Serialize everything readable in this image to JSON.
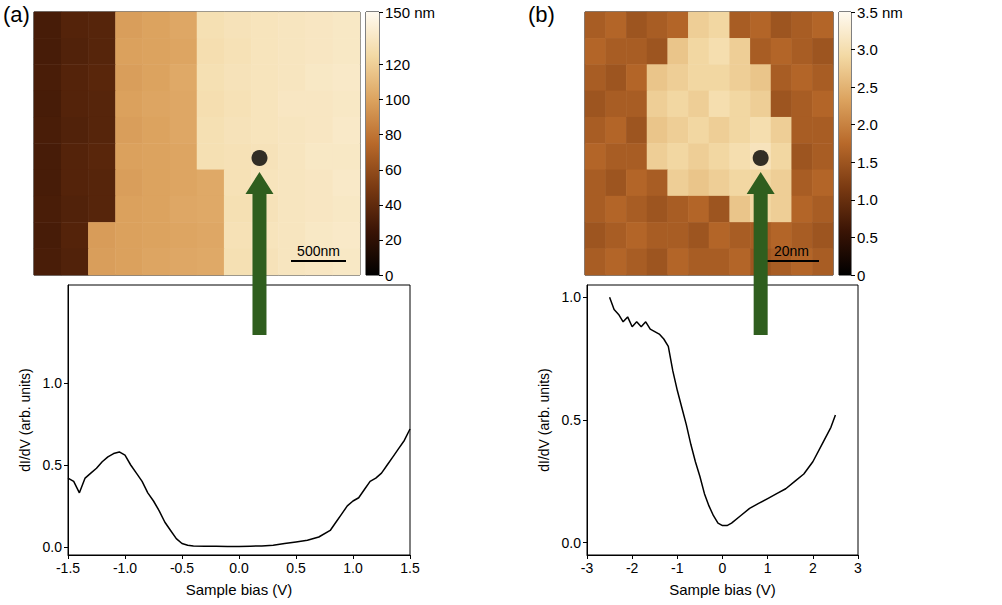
{
  "chart_data": [
    {
      "type": "heatmap",
      "panel_label": "(a)",
      "tick_labels": false,
      "marker": "circle",
      "scale_bar": "500nm",
      "marked_point": [
        8.3,
        5.55
      ],
      "cells": [
        [
          30,
          35,
          36,
          98,
          100,
          102,
          130,
          132,
          133,
          134,
          135,
          136
        ],
        [
          30,
          34,
          36,
          99,
          100,
          101,
          129,
          131,
          133,
          134,
          135,
          136
        ],
        [
          31,
          35,
          37,
          98,
          100,
          103,
          130,
          132,
          133,
          134,
          136,
          137
        ],
        [
          30,
          35,
          36,
          99,
          101,
          102,
          129,
          131,
          133,
          135,
          135,
          136
        ],
        [
          31,
          34,
          36,
          98,
          100,
          102,
          130,
          132,
          133,
          134,
          135,
          137
        ],
        [
          30,
          35,
          37,
          99,
          100,
          101,
          130,
          131,
          132,
          134,
          136,
          136
        ],
        [
          30,
          35,
          36,
          98,
          100,
          101,
          103,
          131,
          133,
          134,
          135,
          137
        ],
        [
          31,
          34,
          36,
          99,
          100,
          102,
          103,
          130,
          132,
          134,
          135,
          136
        ],
        [
          30,
          35,
          97,
          99,
          100,
          101,
          102,
          131,
          133,
          134,
          136,
          137
        ],
        [
          31,
          34,
          98,
          99,
          101,
          102,
          103,
          130,
          132,
          134,
          135,
          136
        ]
      ],
      "colorbar": {
        "range": [
          0,
          150
        ],
        "ticks": [
          0,
          20,
          40,
          60,
          80,
          100,
          120,
          {
            "value": 150,
            "label": "150 nm"
          }
        ],
        "colors": [
          "#000000",
          "#3a1405",
          "#7a3a12",
          "#b8692a",
          "#dca35f",
          "#f3d9a4",
          "#fffaf0"
        ]
      }
    },
    {
      "type": "line",
      "xlabel": "Sample bias (V)",
      "ylabel": "dI/dV (arb. units)",
      "xlim": [
        -1.5,
        1.5
      ],
      "ylim": [
        -0.05,
        1.6
      ],
      "xticks": [
        -1.5,
        {
          "value": -1,
          "label": "-1.0"
        },
        -0.5,
        {
          "value": 0,
          "label": "0.0"
        },
        0.5,
        {
          "value": 1,
          "label": "1.0"
        },
        1.5
      ],
      "yticks": [
        {
          "value": 0,
          "label": "0.0"
        },
        0.5,
        {
          "value": 1,
          "label": "1.0"
        }
      ],
      "grid": false,
      "color": "#000000",
      "x": [
        -1.5,
        -1.45,
        -1.4,
        -1.35,
        -1.3,
        -1.25,
        -1.2,
        -1.15,
        -1.1,
        -1.05,
        -1.0,
        -0.95,
        -0.9,
        -0.85,
        -0.8,
        -0.75,
        -0.7,
        -0.65,
        -0.6,
        -0.55,
        -0.5,
        -0.45,
        -0.4,
        -0.3,
        -0.2,
        -0.1,
        0.0,
        0.1,
        0.2,
        0.3,
        0.4,
        0.5,
        0.6,
        0.7,
        0.8,
        0.85,
        0.9,
        0.95,
        1.0,
        1.05,
        1.1,
        1.15,
        1.2,
        1.25,
        1.3,
        1.35,
        1.4,
        1.45,
        1.5
      ],
      "values": [
        0.42,
        0.4,
        0.33,
        0.42,
        0.45,
        0.48,
        0.52,
        0.55,
        0.57,
        0.58,
        0.56,
        0.5,
        0.45,
        0.4,
        0.33,
        0.28,
        0.22,
        0.15,
        0.1,
        0.05,
        0.02,
        0.01,
        0.005,
        0.003,
        0.003,
        0.002,
        0.002,
        0.004,
        0.005,
        0.01,
        0.02,
        0.03,
        0.04,
        0.06,
        0.1,
        0.15,
        0.2,
        0.25,
        0.28,
        0.3,
        0.35,
        0.4,
        0.42,
        0.45,
        0.5,
        0.55,
        0.6,
        0.65,
        0.72
      ]
    },
    {
      "type": "heatmap",
      "panel_label": "(b)",
      "tick_labels": false,
      "marker": "circle",
      "scale_bar": "20nm",
      "marked_point": [
        8.5,
        5.55
      ],
      "cells": [
        [
          1.6,
          1.7,
          1.5,
          1.6,
          1.7,
          2.8,
          2.9,
          1.6,
          1.7,
          1.5,
          1.6,
          1.7
        ],
        [
          1.7,
          1.6,
          1.6,
          1.5,
          2.7,
          2.9,
          3.0,
          2.8,
          1.6,
          1.7,
          1.6,
          1.5
        ],
        [
          1.6,
          1.5,
          1.7,
          2.7,
          2.8,
          2.9,
          2.9,
          2.8,
          2.7,
          1.6,
          1.7,
          1.6
        ],
        [
          1.5,
          1.6,
          1.6,
          2.8,
          2.9,
          2.8,
          3.0,
          2.9,
          2.8,
          1.5,
          1.6,
          1.7
        ],
        [
          1.6,
          1.7,
          1.5,
          2.7,
          2.8,
          2.9,
          2.8,
          2.9,
          3.0,
          2.8,
          1.6,
          1.6
        ],
        [
          1.7,
          1.6,
          1.6,
          2.8,
          2.9,
          2.8,
          2.9,
          3.0,
          3.1,
          2.9,
          1.5,
          1.6
        ],
        [
          1.6,
          1.5,
          1.7,
          1.6,
          2.8,
          2.7,
          2.8,
          2.9,
          2.9,
          2.8,
          1.6,
          1.7
        ],
        [
          1.6,
          1.7,
          1.6,
          1.5,
          1.6,
          1.7,
          1.5,
          2.7,
          2.9,
          2.8,
          1.7,
          1.6
        ],
        [
          1.5,
          1.6,
          1.7,
          1.6,
          1.6,
          1.5,
          1.7,
          1.6,
          1.6,
          1.7,
          1.6,
          1.5
        ],
        [
          1.6,
          1.7,
          1.6,
          1.5,
          1.7,
          1.6,
          1.6,
          1.7,
          1.5,
          1.6,
          1.7,
          1.6
        ]
      ],
      "colorbar": {
        "range": [
          0,
          3.5
        ],
        "ticks": [
          0,
          0.5,
          {
            "value": 1,
            "label": "1.0"
          },
          1.5,
          {
            "value": 2,
            "label": "2.0"
          },
          2.5,
          {
            "value": 3,
            "label": "3.0"
          },
          {
            "value": 3.5,
            "label": "3.5 nm"
          }
        ],
        "colors": [
          "#000000",
          "#3a1405",
          "#7a3a12",
          "#b8692a",
          "#dca35f",
          "#f3d9a4",
          "#fffaf0"
        ]
      }
    },
    {
      "type": "line",
      "xlabel": "Sample bias (V)",
      "ylabel": "dI/dV (arb. units)",
      "xlim": [
        -3,
        3
      ],
      "ylim": [
        -0.05,
        1.05
      ],
      "xticks": [
        -3,
        -2,
        -1,
        0,
        1,
        2,
        3
      ],
      "yticks": [
        {
          "value": 0,
          "label": "0.0"
        },
        0.5,
        {
          "value": 1,
          "label": "1.0"
        }
      ],
      "grid": false,
      "color": "#000000",
      "x": [
        -2.5,
        -2.4,
        -2.3,
        -2.2,
        -2.1,
        -2.0,
        -1.9,
        -1.8,
        -1.7,
        -1.6,
        -1.5,
        -1.4,
        -1.3,
        -1.2,
        -1.1,
        -1.0,
        -0.9,
        -0.8,
        -0.7,
        -0.6,
        -0.5,
        -0.4,
        -0.3,
        -0.2,
        -0.1,
        0.0,
        0.1,
        0.2,
        0.4,
        0.6,
        0.8,
        1.0,
        1.2,
        1.4,
        1.6,
        1.8,
        2.0,
        2.2,
        2.4,
        2.5
      ],
      "values": [
        1.0,
        0.95,
        0.93,
        0.9,
        0.92,
        0.88,
        0.9,
        0.88,
        0.9,
        0.87,
        0.86,
        0.85,
        0.83,
        0.8,
        0.7,
        0.62,
        0.55,
        0.48,
        0.4,
        0.33,
        0.27,
        0.2,
        0.15,
        0.11,
        0.08,
        0.07,
        0.07,
        0.08,
        0.11,
        0.14,
        0.16,
        0.18,
        0.2,
        0.22,
        0.25,
        0.28,
        0.33,
        0.4,
        0.47,
        0.52
      ]
    }
  ]
}
